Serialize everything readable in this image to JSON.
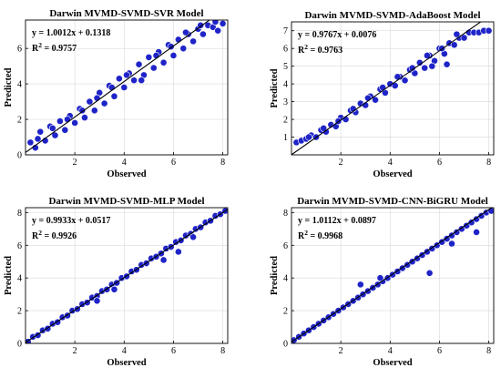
{
  "chart_data": [
    {
      "type": "scatter",
      "title": "Darwin MVMD-SVMD-SVR Model",
      "xlabel": "Observed",
      "ylabel": "Predicted",
      "xlim": [
        0,
        8.2
      ],
      "ylim": [
        0,
        7.6
      ],
      "xticks": [
        2,
        4,
        6,
        8
      ],
      "yticks": [
        0,
        2,
        4,
        6
      ],
      "grid": true,
      "equation": "y = 1.0012x + 0.1318",
      "r2_label": "R",
      "r2_exp": "2",
      "r2_value": " = 0.9757",
      "slope": 1.0012,
      "intercept": 0.1318,
      "x": [
        0.2,
        0.4,
        0.6,
        0.8,
        1.0,
        1.2,
        1.4,
        1.6,
        1.8,
        2.0,
        2.2,
        2.4,
        2.6,
        2.8,
        3.0,
        3.2,
        3.4,
        3.6,
        3.8,
        4.0,
        4.2,
        4.4,
        4.6,
        4.8,
        5.0,
        5.2,
        5.4,
        5.6,
        5.8,
        6.0,
        6.2,
        6.4,
        6.6,
        6.8,
        7.0,
        7.2,
        7.4,
        7.6,
        7.8,
        8.0,
        0.5,
        1.1,
        1.7,
        2.3,
        2.9,
        3.5,
        4.1,
        4.7,
        5.3,
        5.9,
        6.5,
        7.1,
        7.7
      ],
      "y": [
        0.7,
        0.4,
        1.3,
        0.8,
        1.6,
        1.1,
        1.9,
        1.4,
        2.2,
        1.8,
        2.6,
        2.1,
        3.0,
        2.5,
        3.5,
        2.9,
        3.9,
        3.3,
        4.3,
        3.8,
        4.6,
        4.2,
        5.1,
        4.5,
        5.5,
        4.9,
        5.8,
        5.2,
        6.2,
        5.6,
        6.5,
        6.0,
        6.8,
        6.4,
        7.1,
        6.8,
        7.3,
        7.2,
        7.0,
        7.4,
        0.9,
        1.5,
        2.0,
        2.5,
        3.2,
        3.8,
        4.5,
        4.2,
        5.6,
        6.1,
        6.9,
        7.3,
        7.5
      ]
    },
    {
      "type": "scatter",
      "title": "Darwin MVMD-SVMD-AdaBoost Model",
      "xlabel": "Observed",
      "ylabel": "Predicted",
      "xlim": [
        0,
        8.2
      ],
      "ylim": [
        0,
        7.5
      ],
      "xticks": [
        2,
        4,
        6,
        8
      ],
      "yticks": [
        1,
        2,
        3,
        4,
        5,
        6,
        7
      ],
      "grid": true,
      "equation": "y = 0.9767x + 0.0076",
      "r2_label": "R",
      "r2_exp": "2",
      "r2_value": " = 0.9763",
      "slope": 0.9767,
      "intercept": 0.0076,
      "x": [
        0.2,
        0.4,
        0.6,
        0.8,
        1.0,
        1.2,
        1.4,
        1.6,
        1.8,
        2.0,
        2.2,
        2.4,
        2.6,
        2.8,
        3.0,
        3.2,
        3.4,
        3.6,
        3.8,
        4.0,
        4.2,
        4.4,
        4.6,
        4.8,
        5.0,
        5.2,
        5.4,
        5.6,
        5.8,
        6.0,
        6.2,
        6.4,
        6.6,
        6.8,
        7.0,
        7.2,
        7.4,
        7.6,
        7.8,
        8.0,
        0.7,
        1.3,
        1.9,
        2.5,
        3.1,
        3.7,
        4.3,
        4.9,
        5.5,
        6.1,
        6.7,
        5.7,
        6.3
      ],
      "y": [
        0.7,
        0.8,
        0.9,
        1.1,
        1.0,
        1.4,
        1.3,
        1.7,
        1.6,
        2.1,
        2.0,
        2.5,
        2.4,
        2.9,
        2.8,
        3.3,
        3.1,
        3.7,
        3.5,
        4.0,
        3.9,
        4.4,
        4.2,
        4.8,
        4.6,
        5.2,
        4.9,
        5.6,
        5.3,
        6.0,
        5.7,
        6.3,
        6.2,
        6.6,
        6.6,
        6.9,
        6.9,
        6.9,
        7.0,
        7.0,
        1.0,
        1.5,
        1.9,
        2.6,
        3.2,
        3.8,
        4.4,
        4.9,
        5.6,
        6.0,
        6.8,
        5.0,
        5.1
      ]
    },
    {
      "type": "scatter",
      "title": "Darwin MVMD-SVMD-MLP Model",
      "xlabel": "Observed",
      "ylabel": "Predicted",
      "xlim": [
        0,
        8.2
      ],
      "ylim": [
        0,
        8.3
      ],
      "xticks": [
        2,
        4,
        6,
        8
      ],
      "yticks": [
        0,
        2,
        4,
        6,
        8
      ],
      "grid": true,
      "equation": "y = 0.9933x + 0.0517",
      "r2_label": "R",
      "r2_exp": "2",
      "r2_value": " = 0.9926",
      "slope": 0.9933,
      "intercept": 0.0517,
      "x": [
        0.1,
        0.3,
        0.5,
        0.7,
        0.9,
        1.1,
        1.3,
        1.5,
        1.7,
        1.9,
        2.1,
        2.3,
        2.5,
        2.7,
        2.9,
        3.1,
        3.3,
        3.5,
        3.7,
        3.9,
        4.1,
        4.3,
        4.5,
        4.7,
        4.9,
        5.1,
        5.3,
        5.5,
        5.7,
        5.9,
        6.1,
        6.3,
        6.5,
        6.7,
        6.9,
        7.1,
        7.3,
        7.5,
        7.7,
        7.9,
        8.1,
        2.9,
        3.6,
        5.6,
        6.2,
        6.8
      ],
      "y": [
        0.1,
        0.4,
        0.5,
        0.8,
        0.9,
        1.2,
        1.3,
        1.6,
        1.7,
        2.0,
        2.1,
        2.4,
        2.5,
        2.8,
        2.9,
        3.2,
        3.3,
        3.6,
        3.7,
        4.0,
        4.1,
        4.4,
        4.5,
        4.8,
        4.9,
        5.2,
        5.3,
        5.5,
        5.8,
        5.9,
        6.2,
        6.3,
        6.6,
        6.7,
        7.0,
        7.1,
        7.4,
        7.5,
        7.8,
        7.9,
        8.1,
        2.6,
        3.3,
        5.1,
        5.6,
        6.5
      ]
    },
    {
      "type": "scatter",
      "title": "Darwin MVMD-SVMD-CNN-BiGRU Model",
      "xlabel": "Observed",
      "ylabel": "Predicted",
      "xlim": [
        0,
        8.2
      ],
      "ylim": [
        0,
        8.3
      ],
      "xticks": [
        2,
        4,
        6,
        8
      ],
      "yticks": [
        0,
        2,
        4,
        6,
        8
      ],
      "grid": true,
      "equation": "y = 1.0112x + 0.0897",
      "r2_label": "R",
      "r2_exp": "2",
      "r2_value": " = 0.9968",
      "slope": 1.0112,
      "intercept": 0.0897,
      "x": [
        0.1,
        0.3,
        0.5,
        0.7,
        0.9,
        1.1,
        1.3,
        1.5,
        1.7,
        1.9,
        2.1,
        2.3,
        2.5,
        2.7,
        2.9,
        3.1,
        3.3,
        3.5,
        3.7,
        3.9,
        4.1,
        4.3,
        4.5,
        4.7,
        4.9,
        5.1,
        5.3,
        5.5,
        5.7,
        5.9,
        6.1,
        6.3,
        6.5,
        6.7,
        6.9,
        7.1,
        7.3,
        7.5,
        7.7,
        7.9,
        8.1,
        2.8,
        3.6,
        5.6,
        6.5,
        7.5
      ],
      "y": [
        0.2,
        0.4,
        0.6,
        0.8,
        1.0,
        1.2,
        1.4,
        1.6,
        1.8,
        2.0,
        2.2,
        2.4,
        2.6,
        2.8,
        3.0,
        3.2,
        3.4,
        3.6,
        3.8,
        4.0,
        4.2,
        4.4,
        4.6,
        4.8,
        5.0,
        5.2,
        5.4,
        5.6,
        5.8,
        6.0,
        6.2,
        6.4,
        6.6,
        6.8,
        7.0,
        7.2,
        7.4,
        7.6,
        7.8,
        8.0,
        8.1,
        3.6,
        4.0,
        4.3,
        6.1,
        6.8
      ]
    }
  ],
  "colors": {
    "marker_fill": "#1f24c8",
    "marker_edge": "#ffffff",
    "fit_line": "#000000",
    "grid": "#d9d9d9"
  }
}
